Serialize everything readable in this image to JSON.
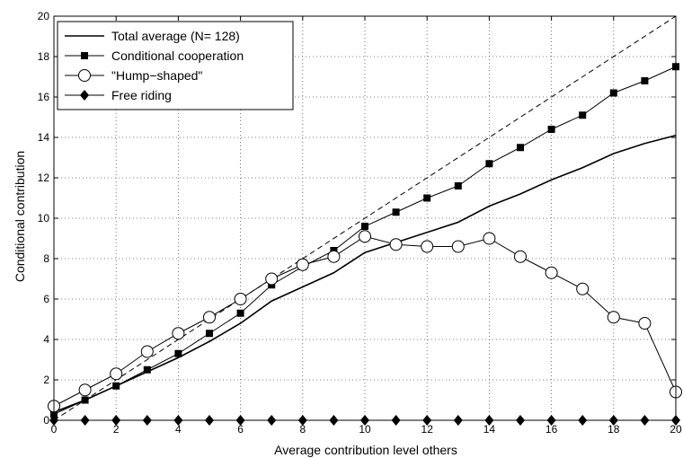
{
  "chart_data": {
    "type": "line",
    "xlabel": "Average contribution level others",
    "ylabel": "Conditional contribution",
    "xlim": [
      0,
      20
    ],
    "ylim": [
      0,
      20
    ],
    "grid": true,
    "x_ticks": [
      0,
      2,
      4,
      6,
      8,
      10,
      12,
      14,
      16,
      18,
      20
    ],
    "y_ticks": [
      0,
      2,
      4,
      6,
      8,
      10,
      12,
      14,
      16,
      18,
      20
    ],
    "legend_position": "top-left",
    "x": [
      0,
      1,
      2,
      3,
      4,
      5,
      6,
      7,
      8,
      9,
      10,
      11,
      12,
      13,
      14,
      15,
      16,
      17,
      18,
      19,
      20
    ],
    "series": [
      {
        "name": "Total average (N= 128)",
        "marker": "none",
        "line_style": "solid",
        "values": [
          0.4,
          1.0,
          1.7,
          2.4,
          3.1,
          3.9,
          4.8,
          5.9,
          6.6,
          7.3,
          8.3,
          8.8,
          9.3,
          9.8,
          10.6,
          11.2,
          11.9,
          12.5,
          13.2,
          13.7,
          14.1
        ]
      },
      {
        "name": "Conditional cooperation",
        "marker": "square",
        "line_style": "solid",
        "values": [
          0.3,
          1.0,
          1.7,
          2.5,
          3.3,
          4.3,
          5.3,
          6.7,
          7.6,
          8.4,
          9.6,
          10.3,
          11.0,
          11.6,
          12.7,
          13.5,
          14.4,
          15.1,
          16.2,
          16.8,
          17.5
        ]
      },
      {
        "name": "\"Hump−shaped\"",
        "marker": "circle",
        "line_style": "solid",
        "values": [
          0.7,
          1.5,
          2.3,
          3.4,
          4.3,
          5.1,
          6.0,
          7.0,
          7.7,
          8.1,
          9.1,
          8.7,
          8.6,
          8.6,
          9.0,
          8.1,
          7.3,
          6.5,
          5.1,
          4.8,
          1.4
        ]
      },
      {
        "name": "Free riding",
        "marker": "diamond",
        "line_style": "solid",
        "values": [
          0,
          0,
          0,
          0,
          0,
          0,
          0,
          0,
          0,
          0,
          0,
          0,
          0,
          0,
          0,
          0,
          0,
          0,
          0,
          0,
          0
        ]
      }
    ],
    "reference_line": {
      "style": "dashed",
      "x": [
        0,
        20
      ],
      "y": [
        0,
        20
      ]
    }
  }
}
